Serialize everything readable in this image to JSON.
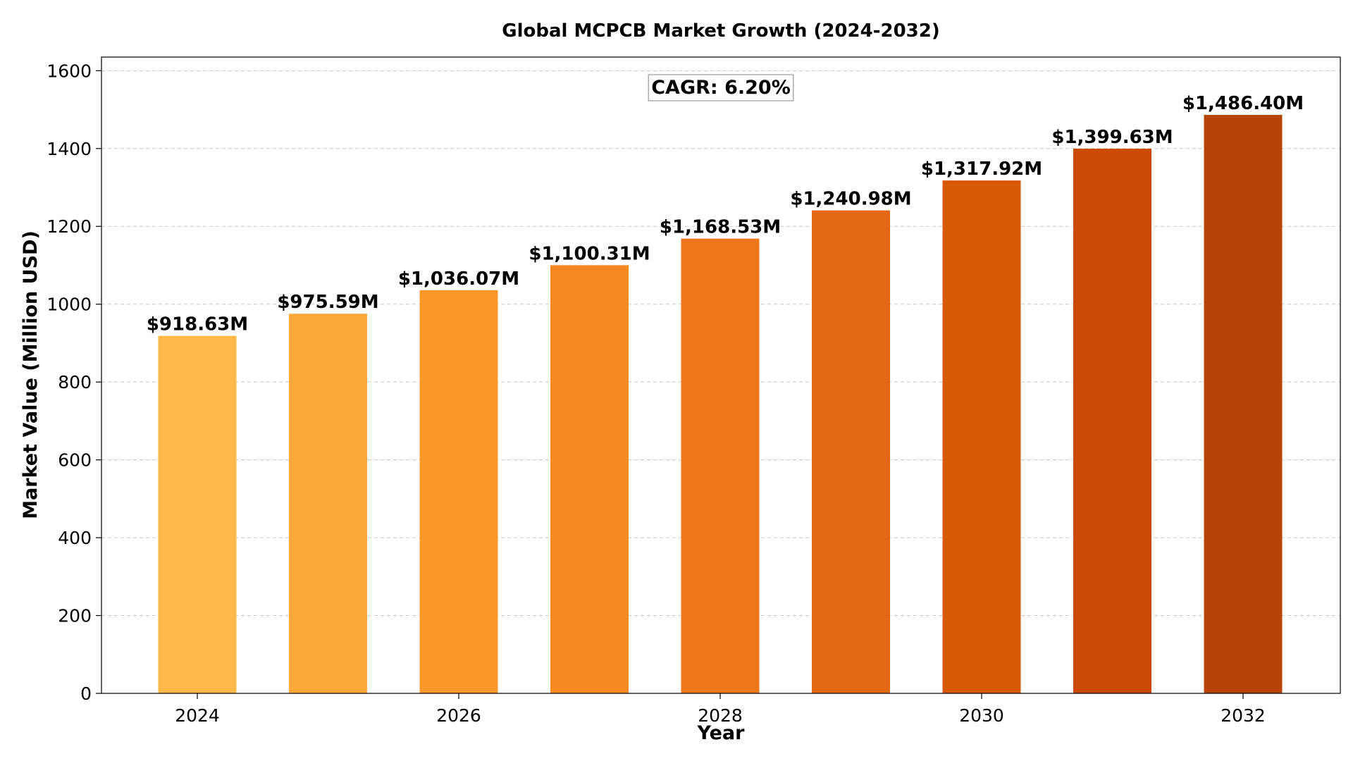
{
  "chart_data": {
    "type": "bar",
    "title": "Global MCPCB Market Growth (2024-2032)",
    "xlabel": "Year",
    "ylabel": "Market Value (Million USD)",
    "categories": [
      "2024",
      "2025",
      "2026",
      "2027",
      "2028",
      "2029",
      "2030",
      "2031",
      "2032"
    ],
    "values": [
      918.63,
      975.59,
      1036.07,
      1100.31,
      1168.53,
      1240.98,
      1317.92,
      1399.63,
      1486.4
    ],
    "data_labels": [
      "$918.63M",
      "$975.59M",
      "$1,036.07M",
      "$1,100.31M",
      "$1,168.53M",
      "$1,240.98M",
      "$1,317.92M",
      "$1,399.63M",
      "$1,486.40M"
    ],
    "bar_colors": [
      "#FDB848",
      "#FDAA3A",
      "#FB982B",
      "#F58A22",
      "#EF771B",
      "#E56813",
      "#D8590A",
      "#CB4A03",
      "#B74304"
    ],
    "x_tick_labels": [
      "2024",
      "2026",
      "2028",
      "2030",
      "2032"
    ],
    "y_ticks": [
      0,
      200,
      400,
      600,
      800,
      1000,
      1200,
      1400,
      1600
    ],
    "ylim": [
      0,
      1635
    ],
    "grid": "y-dashed",
    "annotation": "CAGR: 6.20%",
    "annotation_placement": "top-center"
  }
}
